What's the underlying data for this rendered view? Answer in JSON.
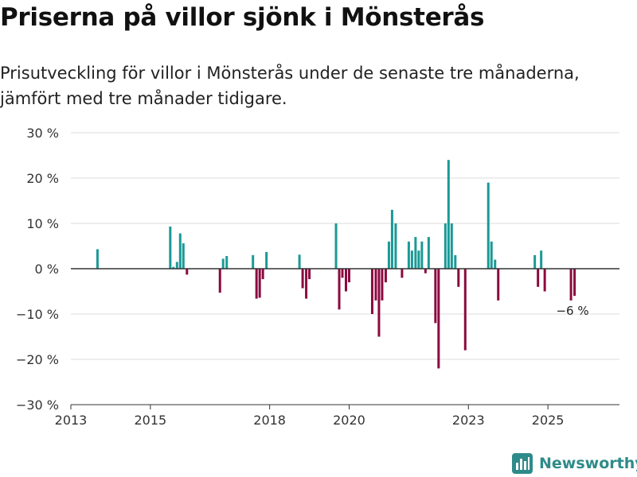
{
  "title": "Priserna på villor sjönk i Mönsterås",
  "subtitle": "Prisutveckling för villor i Mönsterås under de senaste tre månaderna, jämfört med tre månader tidigare.",
  "brand": {
    "name": "Newsworthy",
    "color": "#2e8b8a"
  },
  "colors": {
    "positive": "#1a9a96",
    "negative": "#8b0a3f",
    "grid": "#dddddd",
    "axis": "#333333"
  },
  "chart_data": {
    "type": "bar",
    "title": "Priserna på villor sjönk i Mönsterås",
    "xlabel": "",
    "ylabel": "",
    "ylim": [
      -30,
      30
    ],
    "xlim": [
      2013,
      2026.8
    ],
    "y_ticks": [
      30,
      20,
      10,
      0,
      -10,
      -20,
      -30
    ],
    "y_tick_labels": [
      "30 %",
      "20 %",
      "10 %",
      "0 %",
      "−10 %",
      "−20 %",
      "−30 %"
    ],
    "x_ticks": [
      2013,
      2015,
      2018,
      2020,
      2023,
      2025
    ],
    "x_tick_labels": [
      "2013",
      "2015",
      "2018",
      "2020",
      "2023",
      "2025"
    ],
    "grid": true,
    "last_value_label": "−6 %",
    "series": [
      {
        "name": "Prisutveckling",
        "points": [
          {
            "x": 2013.67,
            "value": 4.3
          },
          {
            "x": 2015.5,
            "value": 9.3
          },
          {
            "x": 2015.58,
            "value": 0.4
          },
          {
            "x": 2015.67,
            "value": 1.5
          },
          {
            "x": 2015.75,
            "value": 7.8
          },
          {
            "x": 2015.83,
            "value": 5.6
          },
          {
            "x": 2015.92,
            "value": -1.3
          },
          {
            "x": 2016.75,
            "value": -5.3
          },
          {
            "x": 2016.83,
            "value": 2.2
          },
          {
            "x": 2016.92,
            "value": 2.8
          },
          {
            "x": 2017.58,
            "value": 3.0
          },
          {
            "x": 2017.67,
            "value": -6.6
          },
          {
            "x": 2017.75,
            "value": -6.4
          },
          {
            "x": 2017.83,
            "value": -2.3
          },
          {
            "x": 2017.92,
            "value": 3.7
          },
          {
            "x": 2018.75,
            "value": 3.1
          },
          {
            "x": 2018.83,
            "value": -4.3
          },
          {
            "x": 2018.92,
            "value": -6.6
          },
          {
            "x": 2019.0,
            "value": -2.3
          },
          {
            "x": 2019.67,
            "value": 10.0
          },
          {
            "x": 2019.75,
            "value": -9.0
          },
          {
            "x": 2019.83,
            "value": -2.0
          },
          {
            "x": 2019.92,
            "value": -5.0
          },
          {
            "x": 2020.0,
            "value": -3.0
          },
          {
            "x": 2020.58,
            "value": -10.0
          },
          {
            "x": 2020.67,
            "value": -7.0
          },
          {
            "x": 2020.75,
            "value": -15.0
          },
          {
            "x": 2020.83,
            "value": -7.0
          },
          {
            "x": 2020.92,
            "value": -3.0
          },
          {
            "x": 2021.0,
            "value": 6.0
          },
          {
            "x": 2021.08,
            "value": 13.0
          },
          {
            "x": 2021.17,
            "value": 10.0
          },
          {
            "x": 2021.33,
            "value": -2.0
          },
          {
            "x": 2021.5,
            "value": 6.0
          },
          {
            "x": 2021.58,
            "value": 4.0
          },
          {
            "x": 2021.67,
            "value": 7.0
          },
          {
            "x": 2021.75,
            "value": 4.0
          },
          {
            "x": 2021.83,
            "value": 6.0
          },
          {
            "x": 2021.92,
            "value": -1.0
          },
          {
            "x": 2022.0,
            "value": 7.0
          },
          {
            "x": 2022.17,
            "value": -12.0
          },
          {
            "x": 2022.25,
            "value": -22.0
          },
          {
            "x": 2022.42,
            "value": 10.0
          },
          {
            "x": 2022.5,
            "value": 24.0
          },
          {
            "x": 2022.58,
            "value": 10.0
          },
          {
            "x": 2022.67,
            "value": 3.0
          },
          {
            "x": 2022.75,
            "value": -4.0
          },
          {
            "x": 2022.92,
            "value": -18.0
          },
          {
            "x": 2023.5,
            "value": 19.0
          },
          {
            "x": 2023.58,
            "value": 6.0
          },
          {
            "x": 2023.67,
            "value": 2.0
          },
          {
            "x": 2023.75,
            "value": -7.0
          },
          {
            "x": 2024.67,
            "value": 3.0
          },
          {
            "x": 2024.75,
            "value": -4.0
          },
          {
            "x": 2024.83,
            "value": 4.0
          },
          {
            "x": 2024.92,
            "value": -5.0
          },
          {
            "x": 2025.58,
            "value": -7.0
          },
          {
            "x": 2025.67,
            "value": -6.0
          }
        ]
      }
    ]
  }
}
